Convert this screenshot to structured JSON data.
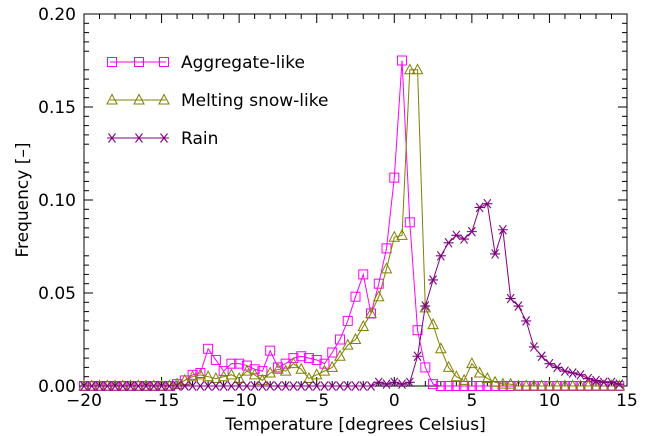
{
  "chart_data": {
    "type": "line",
    "xlabel": "Temperature [degrees Celsius]",
    "ylabel": "Frequency [–]",
    "xlim": [
      -20,
      15
    ],
    "ylim": [
      0,
      0.2
    ],
    "x_ticks": [
      "−20",
      "−15",
      "−10",
      "−5",
      "0",
      "5",
      "10",
      "15"
    ],
    "y_ticks": [
      "0.00",
      "0.05",
      "0.10",
      "0.15",
      "0.20"
    ],
    "x_tick_values": [
      -20,
      -15,
      -10,
      -5,
      0,
      5,
      10,
      15
    ],
    "y_tick_values": [
      0,
      0.05,
      0.1,
      0.15,
      0.2
    ],
    "grid": false,
    "legend_position": "top-left",
    "series": [
      {
        "name": "Aggregate-like",
        "marker": "square",
        "color": "#ff00ff",
        "x": [
          -20,
          -19.5,
          -19,
          -18.5,
          -18,
          -17.5,
          -17,
          -16.5,
          -16,
          -15.5,
          -15,
          -14.5,
          -14,
          -13.5,
          -13,
          -12.5,
          -12,
          -11.5,
          -11,
          -10.5,
          -10,
          -9.5,
          -9,
          -8.5,
          -8,
          -7.5,
          -7,
          -6.5,
          -6,
          -5.5,
          -5,
          -4.5,
          -4,
          -3.5,
          -3,
          -2.5,
          -2,
          -1.5,
          -1,
          -0.5,
          0,
          0.5,
          1,
          1.5,
          2,
          2.5,
          3,
          3.5,
          4,
          4.5,
          5,
          5.5,
          6,
          6.5,
          7,
          7.5,
          8,
          8.5,
          9,
          9.5,
          10,
          10.5,
          11,
          11.5,
          12,
          12.5,
          13,
          13.5,
          14,
          14.5
        ],
        "y": [
          0.0,
          0.0,
          0.0,
          0.0,
          0.0,
          0.0,
          0.0,
          0.0,
          0.0,
          0.0,
          0.0,
          0.0,
          0.001,
          0.003,
          0.006,
          0.007,
          0.02,
          0.014,
          0.008,
          0.012,
          0.012,
          0.011,
          0.009,
          0.008,
          0.019,
          0.01,
          0.012,
          0.015,
          0.016,
          0.015,
          0.014,
          0.012,
          0.018,
          0.025,
          0.035,
          0.048,
          0.06,
          0.039,
          0.055,
          0.074,
          0.112,
          0.175,
          0.088,
          0.03,
          0.01,
          0.001,
          0.0,
          0.0,
          0.0,
          0.0,
          0.0,
          0.0,
          0.0,
          0.0,
          0.0,
          0.0,
          0.0,
          0.0,
          0.0,
          0.0,
          0.0,
          0.0,
          0.0,
          0.0,
          0.0,
          0.0,
          0.0,
          0.0,
          0.0,
          0.0
        ]
      },
      {
        "name": "Melting snow-like",
        "marker": "triangle",
        "color": "#808000",
        "x": [
          -20,
          -19.5,
          -19,
          -18.5,
          -18,
          -17.5,
          -17,
          -16.5,
          -16,
          -15.5,
          -15,
          -14.5,
          -14,
          -13.5,
          -13,
          -12.5,
          -12,
          -11.5,
          -11,
          -10.5,
          -10,
          -9.5,
          -9,
          -8.5,
          -8,
          -7.5,
          -7,
          -6.5,
          -6,
          -5.5,
          -5,
          -4.5,
          -4,
          -3.5,
          -3,
          -2.5,
          -2,
          -1.5,
          -1,
          -0.5,
          0,
          0.5,
          1,
          1.5,
          2,
          2.5,
          3,
          3.5,
          4,
          4.5,
          5,
          5.5,
          6,
          6.5,
          7,
          7.5,
          8,
          8.5,
          9,
          9.5,
          10,
          10.5,
          11,
          11.5,
          12,
          12.5,
          13,
          13.5,
          14,
          14.5
        ],
        "y": [
          0.0,
          0.0,
          0.0,
          0.0,
          0.0,
          0.0,
          0.0,
          0.0,
          0.0,
          0.0,
          0.0,
          0.0,
          0.001,
          0.003,
          0.005,
          0.006,
          0.005,
          0.004,
          0.005,
          0.006,
          0.004,
          0.008,
          0.006,
          0.003,
          0.007,
          0.009,
          0.008,
          0.012,
          0.009,
          0.004,
          0.006,
          0.008,
          0.01,
          0.016,
          0.022,
          0.025,
          0.032,
          0.039,
          0.048,
          0.063,
          0.08,
          0.081,
          0.17,
          0.17,
          0.042,
          0.033,
          0.02,
          0.01,
          0.005,
          0.003,
          0.012,
          0.007,
          0.004,
          0.002,
          0.001,
          0.001,
          0.0,
          0.0,
          0.0,
          0.0,
          0.0,
          0.0,
          0.0,
          0.0,
          0.0,
          0.0,
          0.0,
          0.0,
          0.0,
          0.0
        ]
      },
      {
        "name": "Rain",
        "marker": "asterisk",
        "color": "#800080",
        "x": [
          -20,
          -19.5,
          -19,
          -18.5,
          -18,
          -17.5,
          -17,
          -16.5,
          -16,
          -15.5,
          -15,
          -14.5,
          -14,
          -13.5,
          -13,
          -12.5,
          -12,
          -11.5,
          -11,
          -10.5,
          -10,
          -9.5,
          -9,
          -8.5,
          -8,
          -7.5,
          -7,
          -6.5,
          -6,
          -5.5,
          -5,
          -4.5,
          -4,
          -3.5,
          -3,
          -2.5,
          -2,
          -1.5,
          -1,
          -0.5,
          0,
          0.5,
          1,
          1.5,
          2,
          2.5,
          3,
          3.5,
          4,
          4.5,
          5,
          5.5,
          6,
          6.5,
          7,
          7.5,
          8,
          8.5,
          9,
          9.5,
          10,
          10.5,
          11,
          11.5,
          12,
          12.5,
          13,
          13.5,
          14,
          14.5
        ],
        "y": [
          0.0,
          0.0,
          0.0,
          0.0,
          0.0,
          0.0,
          0.0,
          0.0,
          0.0,
          0.0,
          0.0,
          0.0,
          0.0,
          0.0,
          0.0,
          0.0,
          0.0,
          0.0,
          0.0,
          0.0,
          0.0,
          0.0,
          0.0,
          0.0,
          0.0,
          0.0,
          0.0,
          0.0,
          0.0,
          0.0,
          0.0,
          0.0,
          0.0,
          0.0,
          0.0,
          0.0,
          0.0,
          0.0,
          0.002,
          0.001,
          0.002,
          0.001,
          0.002,
          0.016,
          0.043,
          0.057,
          0.07,
          0.077,
          0.081,
          0.079,
          0.083,
          0.096,
          0.098,
          0.071,
          0.084,
          0.047,
          0.043,
          0.035,
          0.021,
          0.016,
          0.012,
          0.01,
          0.008,
          0.007,
          0.006,
          0.004,
          0.003,
          0.002,
          0.002,
          0.001
        ]
      }
    ]
  }
}
